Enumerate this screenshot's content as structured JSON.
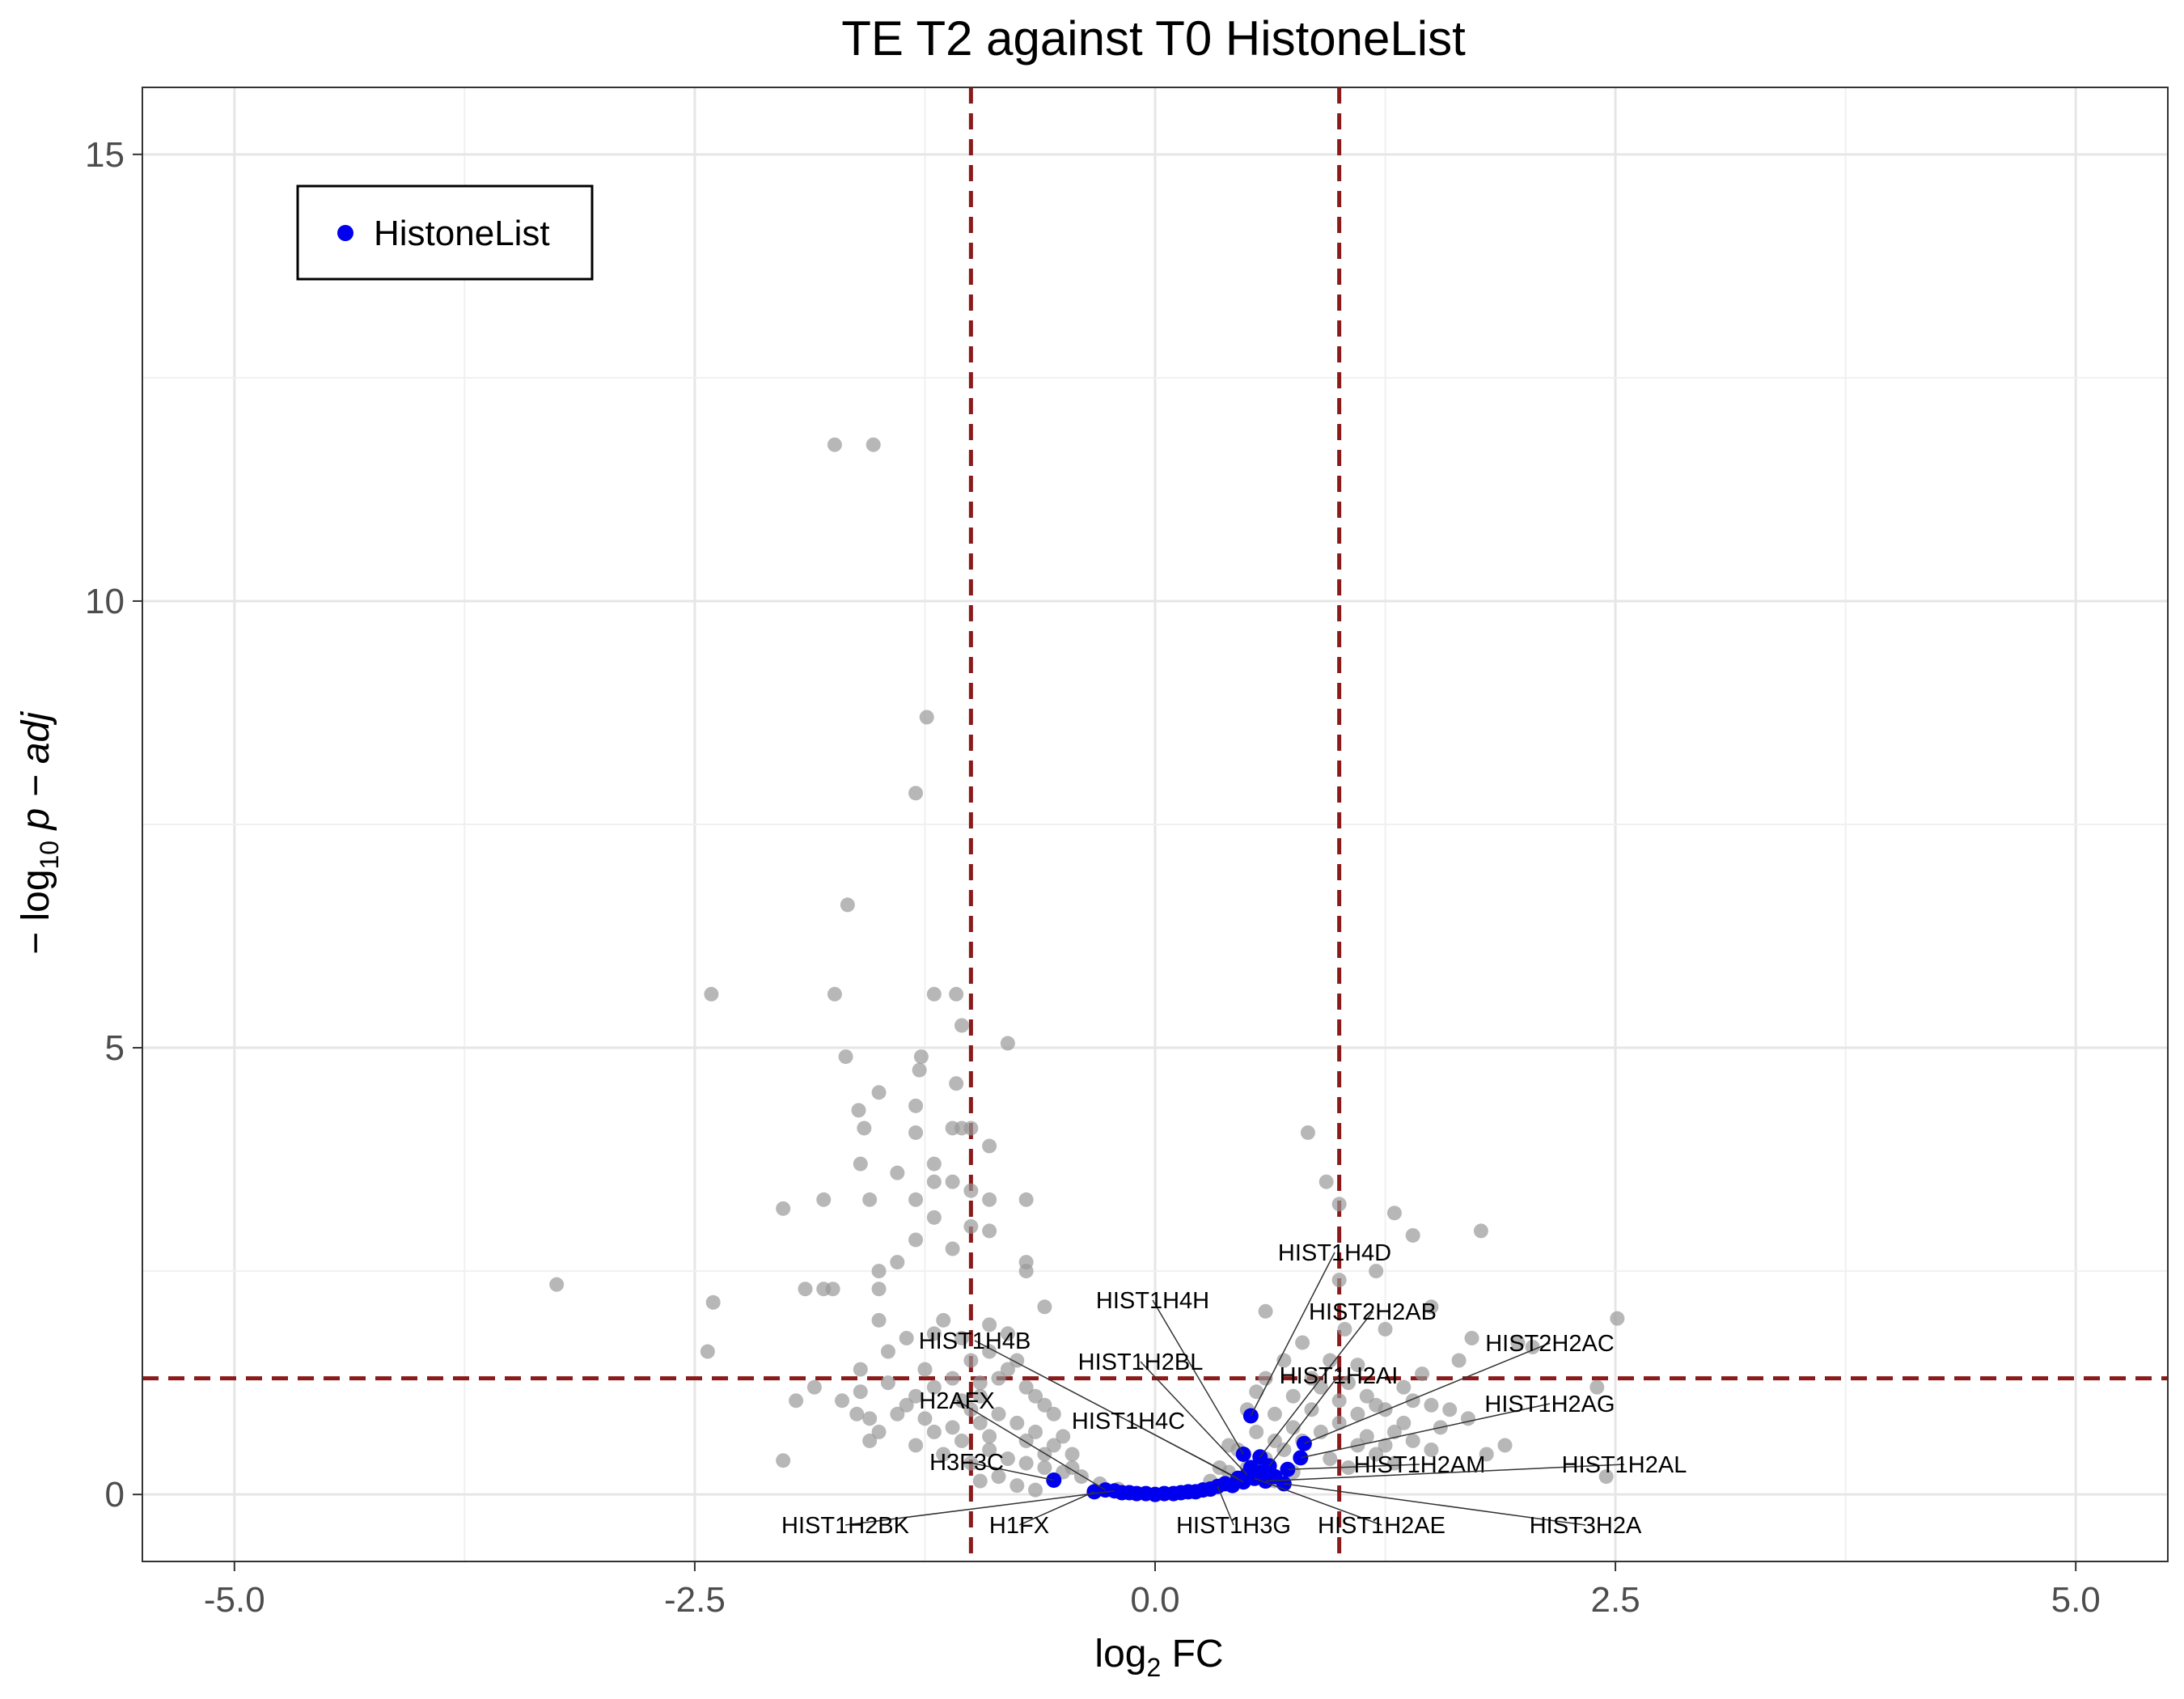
{
  "chart_data": {
    "type": "scatter",
    "title": "TE T2 against T0 HistoneList",
    "xlabel": {
      "base": "log",
      "sub": "2",
      "rest": " FC"
    },
    "ylabel": {
      "prefix": "− log",
      "sub": "10",
      "rest": " p − adj"
    },
    "xlim": [
      -5.5,
      5.5
    ],
    "ylim": [
      -0.75,
      15.75
    ],
    "xticks": [
      -5.0,
      -2.5,
      0.0,
      2.5,
      5.0
    ],
    "xtick_labels": [
      "-5.0",
      "-2.5",
      "0.0",
      "2.5",
      "5.0"
    ],
    "yticks": [
      0,
      5,
      10,
      15
    ],
    "ytick_labels": [
      "0",
      "5",
      "10",
      "15"
    ],
    "grid": true,
    "thresholds": {
      "fc_low": -1.0,
      "fc_high": 1.0,
      "padj": 1.3,
      "color": "#8b1a1a"
    },
    "legend": {
      "position": "top-left",
      "entries": [
        "HistoneList"
      ]
    },
    "colors": {
      "background_points": "#999999",
      "highlight_points": "#0000ee"
    },
    "series": [
      {
        "name": "background",
        "points": [
          [
            -1.74,
            11.75
          ],
          [
            -1.53,
            11.75
          ],
          [
            -1.24,
            8.7
          ],
          [
            -1.3,
            7.85
          ],
          [
            -1.67,
            6.6
          ],
          [
            -2.41,
            5.6
          ],
          [
            -1.74,
            5.6
          ],
          [
            -1.2,
            5.6
          ],
          [
            -1.08,
            5.6
          ],
          [
            -1.05,
            5.25
          ],
          [
            -0.8,
            5.05
          ],
          [
            -1.68,
            4.9
          ],
          [
            -1.27,
            4.9
          ],
          [
            -1.28,
            4.75
          ],
          [
            -1.08,
            4.6
          ],
          [
            -1.5,
            4.5
          ],
          [
            -1.3,
            4.35
          ],
          [
            -1.61,
            4.3
          ],
          [
            -1.58,
            4.1
          ],
          [
            -1.1,
            4.1
          ],
          [
            -1.05,
            4.1
          ],
          [
            -1.0,
            4.1
          ],
          [
            -1.3,
            4.05
          ],
          [
            0.83,
            4.05
          ],
          [
            -1.6,
            3.7
          ],
          [
            -1.2,
            3.7
          ],
          [
            -0.9,
            3.9
          ],
          [
            -1.4,
            3.6
          ],
          [
            -1.2,
            3.5
          ],
          [
            -1.1,
            3.5
          ],
          [
            -1.3,
            3.3
          ],
          [
            -1.0,
            3.4
          ],
          [
            -0.9,
            3.3
          ],
          [
            -1.8,
            3.3
          ],
          [
            0.93,
            3.5
          ],
          [
            -2.02,
            3.2
          ],
          [
            -1.55,
            3.3
          ],
          [
            -0.7,
            3.3
          ],
          [
            -1.2,
            3.1
          ],
          [
            1.0,
            3.25
          ],
          [
            -1.0,
            3.0
          ],
          [
            -0.9,
            2.95
          ],
          [
            1.3,
            3.15
          ],
          [
            -1.3,
            2.85
          ],
          [
            1.77,
            2.95
          ],
          [
            -1.4,
            2.6
          ],
          [
            -1.1,
            2.75
          ],
          [
            1.4,
            2.9
          ],
          [
            -0.7,
            2.6
          ],
          [
            -1.5,
            2.5
          ],
          [
            -3.25,
            2.35
          ],
          [
            -1.9,
            2.3
          ],
          [
            -0.7,
            2.5
          ],
          [
            1.0,
            2.4
          ],
          [
            1.2,
            2.5
          ],
          [
            -2.4,
            2.15
          ],
          [
            -1.8,
            2.3
          ],
          [
            -1.75,
            2.3
          ],
          [
            -1.5,
            2.3
          ],
          [
            1.5,
            2.1
          ],
          [
            -1.5,
            1.95
          ],
          [
            -0.6,
            2.1
          ],
          [
            0.6,
            2.05
          ],
          [
            2.51,
            1.97
          ],
          [
            -2.43,
            1.6
          ],
          [
            -1.2,
            1.8
          ],
          [
            -0.9,
            1.9
          ],
          [
            1.72,
            1.75
          ],
          [
            1.97,
            1.7
          ],
          [
            2.05,
            1.65
          ],
          [
            1.03,
            1.85
          ],
          [
            1.25,
            1.85
          ],
          [
            1.65,
            1.5
          ],
          [
            -1.6,
            1.4
          ],
          [
            -1.85,
            1.2
          ],
          [
            -1.95,
            1.05
          ],
          [
            -1.7,
            1.05
          ],
          [
            1.1,
            1.45
          ],
          [
            1.45,
            1.35
          ],
          [
            2.4,
            1.2
          ],
          [
            -1.62,
            0.9
          ],
          [
            -1.5,
            0.7
          ],
          [
            -1.0,
            0.95
          ],
          [
            1.5,
            1.0
          ],
          [
            1.7,
            0.85
          ],
          [
            -2.02,
            0.38
          ],
          [
            -1.55,
            0.6
          ],
          [
            1.3,
            0.7
          ],
          [
            2.45,
            0.2
          ],
          [
            -0.8,
            1.4
          ],
          [
            -0.7,
            1.2
          ],
          [
            -0.6,
            1.0
          ],
          [
            -1.3,
            1.1
          ],
          [
            -1.1,
            1.3
          ],
          [
            -0.95,
            1.1
          ],
          [
            -0.85,
            0.9
          ],
          [
            -0.75,
            0.8
          ],
          [
            -0.65,
            0.7
          ],
          [
            -0.55,
            0.55
          ],
          [
            -0.45,
            0.45
          ],
          [
            -1.2,
            0.7
          ],
          [
            -1.05,
            0.6
          ],
          [
            -0.9,
            0.5
          ],
          [
            -0.8,
            0.4
          ],
          [
            -0.7,
            0.35
          ],
          [
            -0.6,
            0.3
          ],
          [
            -0.5,
            0.25
          ],
          [
            -0.4,
            0.2
          ],
          [
            -0.3,
            0.12
          ],
          [
            -0.2,
            0.06
          ],
          [
            -1.4,
            0.9
          ],
          [
            -1.3,
            0.55
          ],
          [
            -1.15,
            0.45
          ],
          [
            -1.0,
            0.35
          ],
          [
            -0.95,
            0.8
          ],
          [
            -0.9,
            1.6
          ],
          [
            -0.85,
            1.3
          ],
          [
            -0.8,
            1.8
          ],
          [
            -0.75,
            1.5
          ],
          [
            -0.7,
            0.6
          ],
          [
            -0.65,
            1.1
          ],
          [
            -0.6,
            0.45
          ],
          [
            -0.55,
            0.9
          ],
          [
            -0.5,
            0.65
          ],
          [
            -0.45,
            0.3
          ],
          [
            -1.45,
            1.6
          ],
          [
            -1.35,
            1.75
          ],
          [
            -1.25,
            1.4
          ],
          [
            -1.15,
            1.95
          ],
          [
            -1.05,
            1.75
          ],
          [
            -1.0,
            1.5
          ],
          [
            -0.95,
            1.25
          ],
          [
            -1.25,
            0.85
          ],
          [
            -1.1,
            0.75
          ],
          [
            -0.95,
            0.15
          ],
          [
            -1.55,
            0.85
          ],
          [
            -1.6,
            1.15
          ],
          [
            -1.45,
            1.25
          ],
          [
            -1.35,
            1.0
          ],
          [
            -1.2,
            1.2
          ],
          [
            -0.85,
            0.2
          ],
          [
            -0.75,
            0.1
          ],
          [
            -0.65,
            0.05
          ],
          [
            -1.05,
            1.05
          ],
          [
            -0.9,
            0.65
          ],
          [
            0.3,
            0.15
          ],
          [
            0.4,
            0.25
          ],
          [
            0.5,
            0.3
          ],
          [
            0.6,
            0.4
          ],
          [
            0.7,
            0.5
          ],
          [
            0.8,
            0.6
          ],
          [
            0.9,
            0.7
          ],
          [
            1.0,
            0.8
          ],
          [
            1.1,
            0.9
          ],
          [
            1.2,
            1.0
          ],
          [
            0.45,
            0.5
          ],
          [
            0.55,
            0.7
          ],
          [
            0.65,
            0.9
          ],
          [
            0.75,
            1.1
          ],
          [
            0.85,
            1.3
          ],
          [
            0.95,
            1.5
          ],
          [
            1.05,
            1.25
          ],
          [
            1.15,
            1.1
          ],
          [
            1.25,
            0.95
          ],
          [
            1.35,
            0.8
          ],
          [
            0.6,
            1.3
          ],
          [
            0.7,
            1.5
          ],
          [
            0.8,
            1.7
          ],
          [
            0.9,
            1.2
          ],
          [
            1.0,
            1.05
          ],
          [
            1.1,
            0.55
          ],
          [
            1.2,
            0.45
          ],
          [
            1.3,
            0.35
          ],
          [
            1.4,
            0.6
          ],
          [
            1.5,
            0.5
          ],
          [
            0.5,
            0.95
          ],
          [
            0.55,
            1.15
          ],
          [
            0.65,
            0.6
          ],
          [
            0.75,
            0.75
          ],
          [
            0.85,
            0.95
          ],
          [
            0.95,
            0.4
          ],
          [
            1.05,
            0.3
          ],
          [
            1.15,
            0.65
          ],
          [
            1.25,
            0.55
          ],
          [
            1.35,
            1.2
          ],
          [
            1.4,
            1.05
          ],
          [
            1.55,
            0.75
          ],
          [
            1.6,
            0.95
          ],
          [
            1.8,
            0.45
          ],
          [
            1.9,
            0.55
          ],
          [
            0.35,
            0.3
          ],
          [
            0.4,
            0.55
          ],
          [
            0.55,
            0.2
          ],
          [
            0.65,
            0.15
          ],
          [
            0.75,
            0.25
          ]
        ]
      },
      {
        "name": "HistoneList",
        "points": [
          [
            -0.55,
            0.16
          ],
          [
            -0.33,
            0.03
          ],
          [
            -0.27,
            0.05
          ],
          [
            -0.22,
            0.04
          ],
          [
            -0.18,
            0.02
          ],
          [
            -0.14,
            0.02
          ],
          [
            -0.1,
            0.01
          ],
          [
            -0.05,
            0.01
          ],
          [
            0.0,
            0.0
          ],
          [
            0.05,
            0.01
          ],
          [
            0.1,
            0.01
          ],
          [
            0.14,
            0.02
          ],
          [
            0.18,
            0.03
          ],
          [
            0.22,
            0.03
          ],
          [
            0.26,
            0.05
          ],
          [
            0.3,
            0.06
          ],
          [
            0.34,
            0.09
          ],
          [
            0.38,
            0.12
          ],
          [
            0.42,
            0.1
          ],
          [
            0.45,
            0.18
          ],
          [
            0.48,
            0.14
          ],
          [
            0.5,
            0.22
          ],
          [
            0.52,
            0.3
          ],
          [
            0.54,
            0.18
          ],
          [
            0.57,
            0.25
          ],
          [
            0.6,
            0.15
          ],
          [
            0.62,
            0.32
          ],
          [
            0.65,
            0.2
          ],
          [
            0.7,
            0.12
          ],
          [
            0.72,
            0.28
          ],
          [
            0.48,
            0.45
          ],
          [
            0.52,
            0.88
          ],
          [
            0.57,
            0.42
          ],
          [
            0.79,
            0.41
          ],
          [
            0.81,
            0.57
          ]
        ]
      }
    ],
    "annotations": [
      {
        "label": "HIST1H4D",
        "x": 0.52,
        "y": 0.88
      },
      {
        "label": "HIST1H4H",
        "x": 0.48,
        "y": 0.45
      },
      {
        "label": "HIST2H2AB",
        "x": 0.57,
        "y": 0.42
      },
      {
        "label": "HIST1H4B",
        "x": 0.45,
        "y": 0.18
      },
      {
        "label": "HIST1H2BL",
        "x": 0.5,
        "y": 0.22
      },
      {
        "label": "HIST2H2AC",
        "x": 0.81,
        "y": 0.57
      },
      {
        "label": "HIST1H2AI",
        "x": 0.62,
        "y": 0.32
      },
      {
        "label": "HIST1H2AG",
        "x": 0.79,
        "y": 0.41
      },
      {
        "label": "H2AFX",
        "x": -0.27,
        "y": 0.05
      },
      {
        "label": "HIST1H4C",
        "x": 0.48,
        "y": 0.14
      },
      {
        "label": "H3F3C",
        "x": -0.55,
        "y": 0.16
      },
      {
        "label": "HIST1H2AM",
        "x": 0.72,
        "y": 0.28
      },
      {
        "label": "HIST1H2AL",
        "x": 0.6,
        "y": 0.15
      },
      {
        "label": "HIST1H2BK",
        "x": -0.22,
        "y": 0.04
      },
      {
        "label": "H1FX",
        "x": -0.33,
        "y": 0.03
      },
      {
        "label": "HIST1H3G",
        "x": 0.34,
        "y": 0.09
      },
      {
        "label": "HIST1H2AE",
        "x": 0.54,
        "y": 0.18
      },
      {
        "label": "HIST3H2A",
        "x": 0.7,
        "y": 0.12
      }
    ]
  }
}
